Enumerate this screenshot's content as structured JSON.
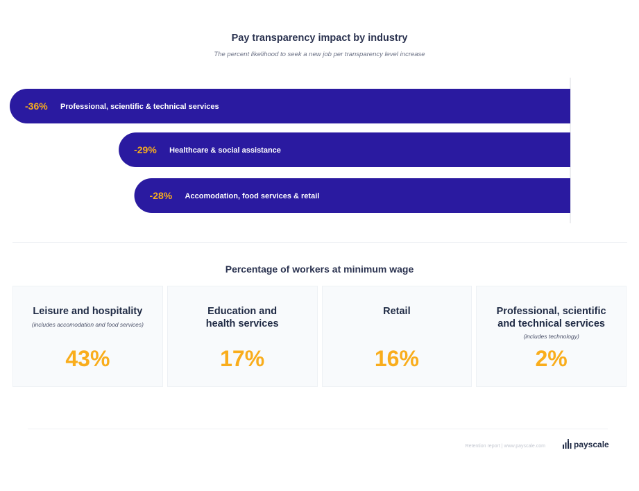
{
  "chart_data": {
    "type": "bar",
    "orientation": "horizontal",
    "title": "Pay transparency impact by industry",
    "subtitle": "The percent likelihood to seek a new job per transparency level increase",
    "categories": [
      "Professional, scientific & technical services",
      "Healthcare & social assistance",
      "Accomodation, food services & retail"
    ],
    "values": [
      -36,
      -29,
      -28
    ],
    "value_labels": [
      "-36%",
      "-29%",
      "-28%"
    ],
    "xlim": [
      -36,
      0
    ],
    "grid": false,
    "colors": {
      "bar": "#2a1aa0",
      "label": "#f9ad1c"
    }
  },
  "min_wage": {
    "title": "Percentage of workers at minimum wage",
    "cards": [
      {
        "title": "Leisure and hospitality",
        "note": "(includes accomodation and food services)",
        "value": "43%"
      },
      {
        "title": "Education and\nhealth services",
        "note": "",
        "value": "17%"
      },
      {
        "title": "Retail",
        "note": "",
        "value": "16%"
      },
      {
        "title": "Professional, scientific\nand technical services",
        "note": "(includes technology)",
        "value": "2%"
      }
    ],
    "colors": {
      "value": "#f9ad1c"
    }
  },
  "footer": {
    "text": "Retention report  |  www.payscale.com",
    "logo": "payscale"
  }
}
